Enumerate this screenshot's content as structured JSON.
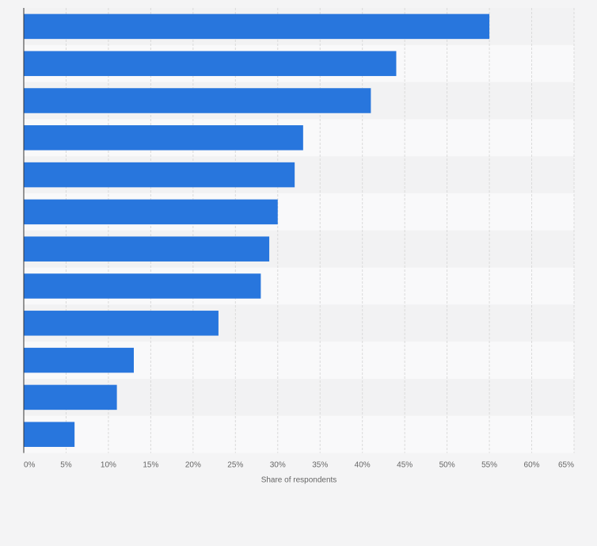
{
  "chart_data": {
    "type": "bar",
    "orientation": "horizontal",
    "title": "",
    "xlabel": "Share of respondents",
    "ylabel": "",
    "categories": [
      "",
      "",
      "",
      "",
      "",
      "",
      "",
      "",
      "",
      "",
      "",
      ""
    ],
    "values": [
      55,
      44,
      41,
      33,
      32,
      30,
      29,
      28,
      23,
      13,
      11,
      6
    ],
    "unit": "%",
    "xlim": [
      0,
      65
    ],
    "x_ticks": [
      "0%",
      "5%",
      "10%",
      "15%",
      "20%",
      "25%",
      "30%",
      "35%",
      "40%",
      "45%",
      "50%",
      "55%",
      "60%",
      "65%"
    ],
    "grid": true,
    "legend": "none",
    "colors": {
      "bar": "#2876dd",
      "background": "#f4f4f5",
      "band_light": "#f9f9fa",
      "band_dark": "#f2f2f3",
      "grid": "#dadada",
      "axis": "#333333",
      "text": "#666666"
    }
  }
}
